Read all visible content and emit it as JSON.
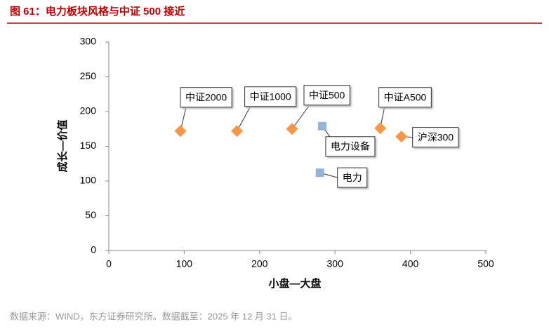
{
  "header": {
    "title": "图 61：电力板块风格与中证 500 接近"
  },
  "chart_data": {
    "type": "scatter",
    "xlabel": "小盘—大盘",
    "ylabel": "成长—价值",
    "xlim": [
      0,
      500
    ],
    "xticks": [
      0,
      100,
      200,
      300,
      400,
      500
    ],
    "ylim": [
      0,
      300
    ],
    "yticks": [
      0,
      50,
      100,
      150,
      200,
      250,
      300
    ],
    "series": [
      {
        "marker": "diamond",
        "color": "#f79646",
        "labels": [
          "中证2000",
          "中证1000",
          "中证500",
          "中证A500",
          "沪深300"
        ],
        "x": [
          95,
          170,
          243,
          360,
          388
        ],
        "values": [
          172,
          172,
          175,
          176,
          164
        ]
      },
      {
        "marker": "square",
        "color": "#95b3d7",
        "labels": [
          "电力设备",
          "电力"
        ],
        "x": [
          283,
          280
        ],
        "values": [
          179,
          112
        ]
      }
    ]
  },
  "footer": {
    "source": "数据来源：WIND，东方证券研究所。数据截至：2025 年 12 月 31 日。"
  }
}
